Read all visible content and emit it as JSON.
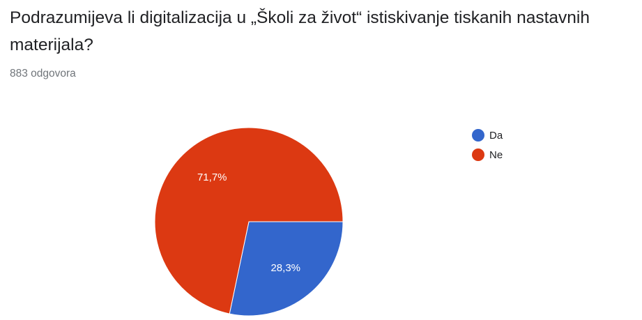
{
  "question": {
    "title": "Podrazumijeva li digitalizacija u „Školi za život“ istiskivanje tiskanih nastavnih materijala?",
    "response_count": "883 odgovora"
  },
  "chart_data": {
    "type": "pie",
    "title": "Podrazumijeva li digitalizacija u „Školi za život“ istiskivanje tiskanih nastavnih materijala?",
    "categories": [
      "Da",
      "Ne"
    ],
    "values": [
      28.3,
      71.7
    ],
    "labels": [
      "28,3%",
      "71,7%"
    ],
    "colors": [
      "#3366cc",
      "#dc3912"
    ],
    "legend_position": "right",
    "start_angle_deg": 90
  },
  "legend": {
    "items": [
      {
        "label": "Da",
        "color": "#3366cc"
      },
      {
        "label": "Ne",
        "color": "#dc3912"
      }
    ]
  }
}
